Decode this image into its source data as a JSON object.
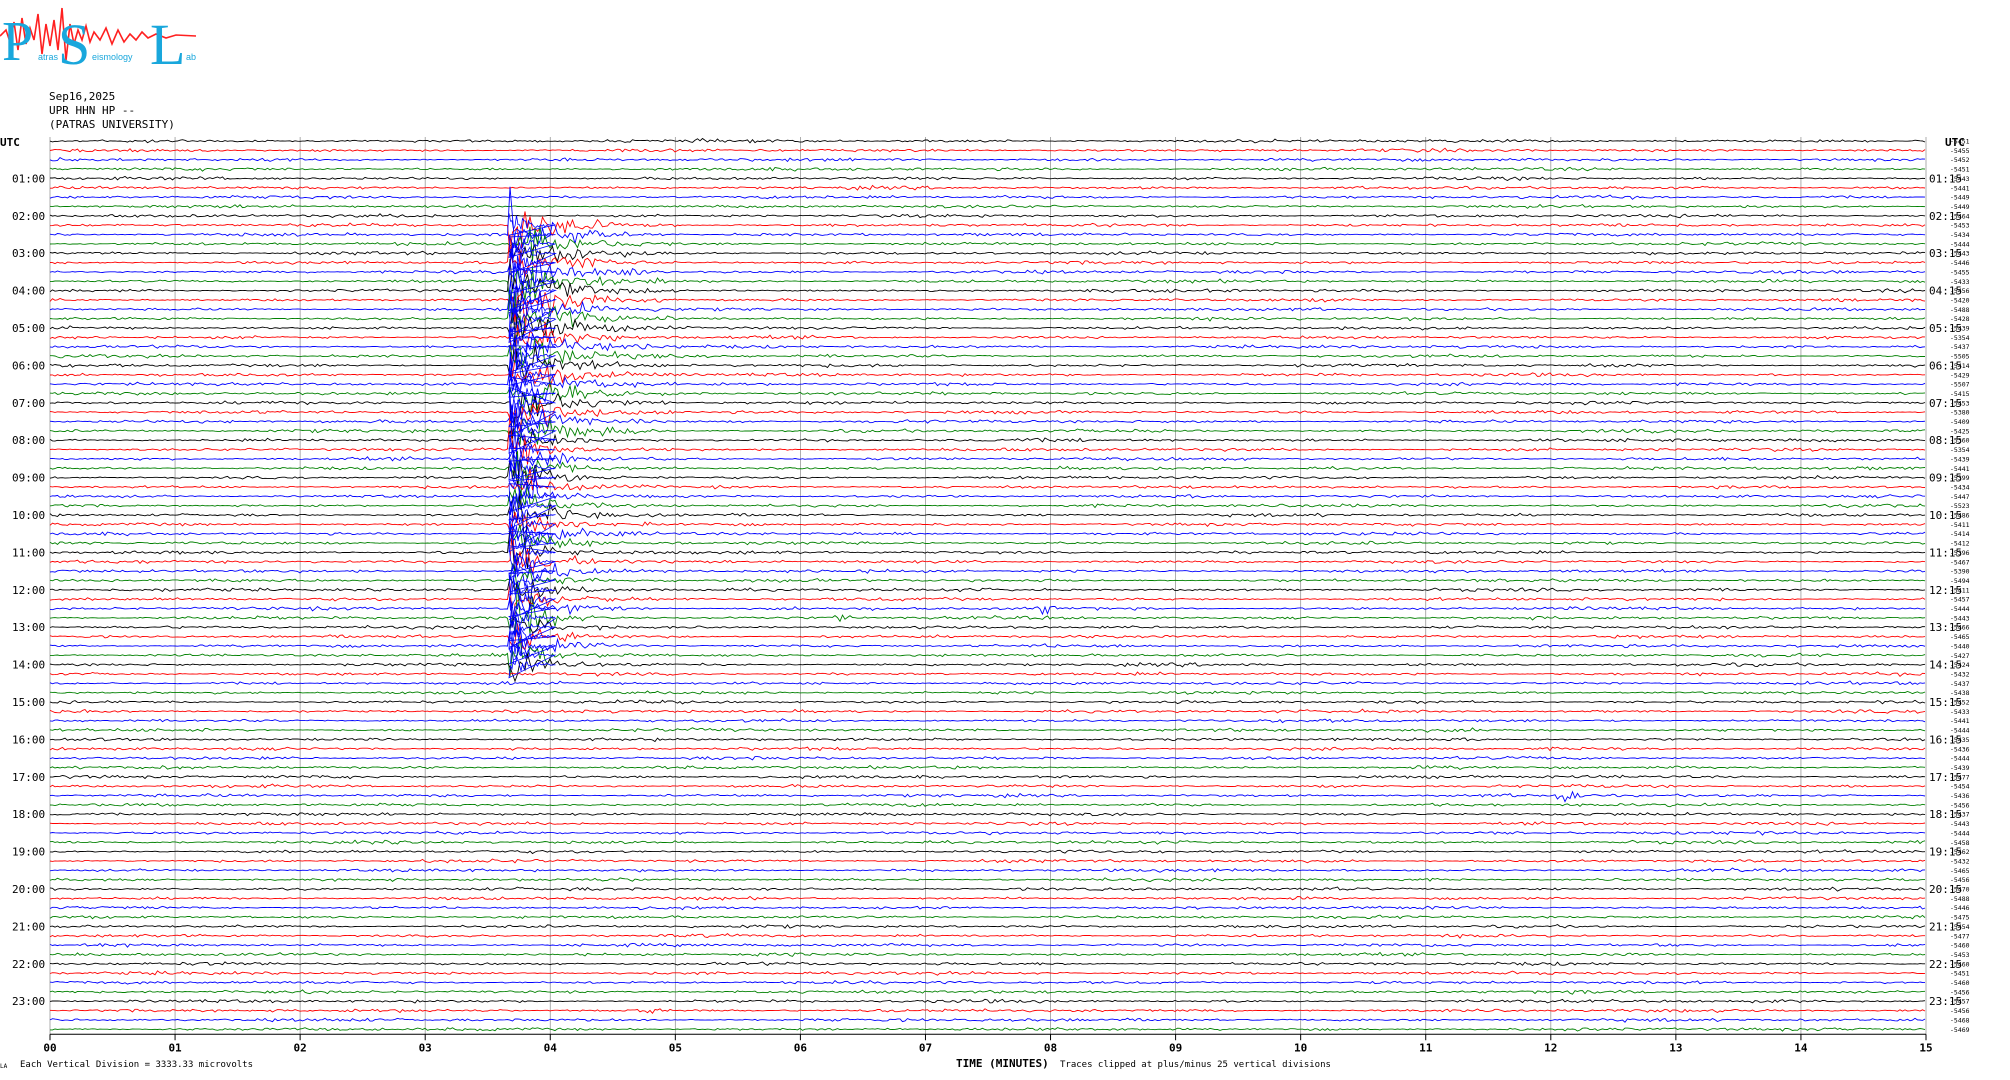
{
  "logo": {
    "letters": [
      "P",
      "S",
      "L"
    ],
    "small_words": [
      "atras",
      "eismology",
      "ab"
    ],
    "colors": {
      "letters": "#19a7dc",
      "trace": "#ff2020"
    }
  },
  "header": {
    "date": "Sep16,2025",
    "station": "UPR HHN HP --",
    "institution": "(PATRAS UNIVERSITY)"
  },
  "footer": {
    "left_mark": "LA",
    "scale_note": "Each Vertical Division = 3333.33 microvolts",
    "xlabel": "TIME (MINUTES)",
    "clip_note": "Traces clipped at plus/minus 25 vertical divisions"
  },
  "chart_data": {
    "type": "line",
    "title": "",
    "xlabel": "TIME (MINUTES)",
    "ylabel": "UTC",
    "xlim": [
      0,
      15
    ],
    "x_ticks": [
      "00",
      "01",
      "02",
      "03",
      "04",
      "05",
      "06",
      "07",
      "08",
      "09",
      "10",
      "11",
      "12",
      "13",
      "14",
      "15"
    ],
    "left_axis_label": "UTC",
    "right_axis_label": "UTC",
    "left_hour_labels": [
      "01:00",
      "02:00",
      "03:00",
      "04:00",
      "05:00",
      "06:00",
      "07:00",
      "08:00",
      "09:00",
      "10:00",
      "11:00",
      "12:00",
      "13:00",
      "14:00",
      "15:00",
      "16:00",
      "17:00",
      "18:00",
      "19:00",
      "20:00",
      "21:00",
      "22:00",
      "23:00"
    ],
    "right_hour_labels": [
      "01:15",
      "02:15",
      "03:15",
      "04:15",
      "05:15",
      "06:15",
      "07:15",
      "08:15",
      "09:15",
      "10:15",
      "11:15",
      "12:15",
      "13:15",
      "14:15",
      "15:15",
      "16:15",
      "17:15",
      "18:15",
      "19:15",
      "20:15",
      "21:15",
      "22:15",
      "23:15"
    ],
    "trace_count": 96,
    "minutes_per_trace": 15,
    "trace_colors": [
      "#000000",
      "#ff0000",
      "#0000ff",
      "#008000"
    ],
    "row_offset_labels": [
      "-5451",
      "-5455",
      "-5452",
      "-5451",
      "-5443",
      "-5441",
      "-5449",
      "-5449",
      "-5464",
      "-5453",
      "-5434",
      "-5444",
      "-5443",
      "-5446",
      "-5455",
      "-5433",
      "-5456",
      "-5420",
      "-5488",
      "-5428",
      "-5439",
      "-5354",
      "-5437",
      "-5505",
      "-5414",
      "-5429",
      "-5507",
      "-5415",
      "-5453",
      "-5380",
      "-5409",
      "-5425",
      "-5360",
      "-5354",
      "-5439",
      "-5441",
      "-5399",
      "-5434",
      "-5447",
      "-5523",
      "-5486",
      "-5411",
      "-5414",
      "-5412",
      "-5396",
      "-5467",
      "-5390",
      "-5494",
      "-5411",
      "-5457",
      "-5444",
      "-5443",
      "-5466",
      "-5465",
      "-5440",
      "-5427",
      "-5424",
      "-5432",
      "-5437",
      "-5438",
      "-5452",
      "-5433",
      "-5441",
      "-5444",
      "-5435",
      "-5436",
      "-5444",
      "-5439",
      "-5477",
      "-5454",
      "-5436",
      "-5456",
      "-5437",
      "-5443",
      "-5444",
      "-5458",
      "-5462",
      "-5432",
      "-5465",
      "-5456",
      "-5470",
      "-5488",
      "-5446",
      "-5475",
      "-5454",
      "-5477",
      "-5460",
      "-5453",
      "-5460",
      "-5451",
      "-5460",
      "-5456",
      "-5457",
      "-5456",
      "-5468",
      "-5469"
    ],
    "events": [
      {
        "label": "main earthquake",
        "start_trace": 9,
        "end_trace": 56,
        "start_minute": 3.67,
        "peak_minute": 3.7,
        "coda_end_minute": 4.5,
        "color": "#0000ff"
      },
      {
        "label": "spike",
        "trace": 70,
        "minute": 12.15,
        "color": "#0000ff"
      },
      {
        "label": "burst",
        "trace": 14,
        "minute": 4.7,
        "color": "#000000"
      },
      {
        "label": "burst",
        "trace": 51,
        "minute": 6.3,
        "color": "#0000ff"
      },
      {
        "label": "burst",
        "trace": 50,
        "minute": 7.95,
        "color": "#0000ff"
      },
      {
        "label": "burst",
        "trace": 93,
        "minute": 4.8,
        "color": "#000000"
      }
    ],
    "grid": true,
    "vertical_gridlines_every_minutes": 1
  }
}
